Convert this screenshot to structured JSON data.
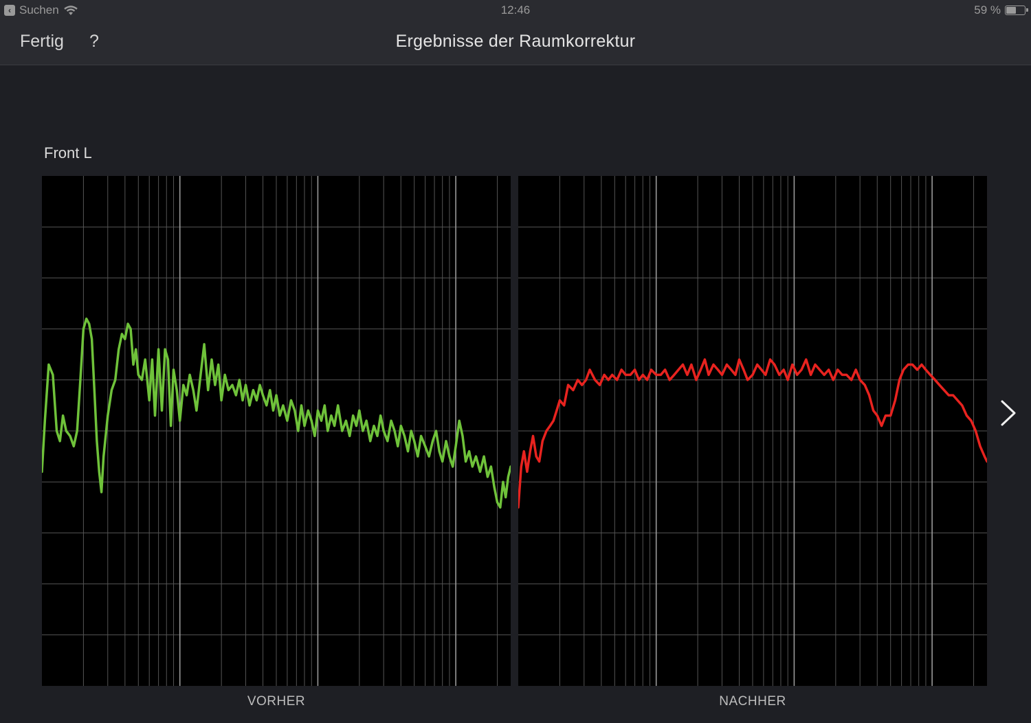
{
  "status_bar": {
    "back_app": "Suchen",
    "time": "12:46",
    "battery": "59 %",
    "battery_level": 0.59
  },
  "nav": {
    "done_label": "Fertig",
    "help_label": "?",
    "title": "Ergebnisse der Raumkorrektur"
  },
  "channel": "Front L",
  "icons": {
    "wifi": "wifi-icon",
    "battery": "battery-icon",
    "back": "back-arrow-icon",
    "next": "chevron-right-icon"
  },
  "colors": {
    "before": "#6fc23a",
    "after": "#e8231f",
    "background": "#1e1f24",
    "plot_background": "#000000",
    "grid": "#555555",
    "grid_major": "#9a9a9a"
  },
  "chart_data": [
    {
      "type": "line",
      "label": "VORHER",
      "x_scale": "log",
      "xlim": [
        10,
        25000
      ],
      "ylim": [
        0,
        10
      ],
      "grid": true,
      "series": [
        {
          "color": "#6fc23a",
          "x": [
            10,
            10.5,
            11.2,
            12,
            12.8,
            13.5,
            14.2,
            15,
            16,
            17,
            18,
            19,
            20,
            21,
            22,
            23,
            24,
            25,
            26,
            27,
            28,
            30,
            32,
            34,
            36,
            38,
            40,
            42,
            44,
            46,
            48,
            50,
            53,
            56,
            60,
            63,
            66,
            70,
            74,
            78,
            82,
            86,
            90,
            95,
            100,
            106,
            112,
            118,
            125,
            132,
            140,
            150,
            160,
            170,
            180,
            190,
            200,
            212,
            225,
            240,
            255,
            270,
            285,
            300,
            320,
            340,
            360,
            380,
            400,
            425,
            450,
            475,
            500,
            530,
            560,
            600,
            640,
            680,
            720,
            760,
            800,
            850,
            900,
            950,
            1000,
            1060,
            1120,
            1180,
            1250,
            1320,
            1400,
            1500,
            1600,
            1700,
            1800,
            1900,
            2000,
            2120,
            2250,
            2400,
            2550,
            2700,
            2850,
            3000,
            3200,
            3400,
            3600,
            3800,
            4000,
            4250,
            4500,
            4750,
            5000,
            5300,
            5600,
            6000,
            6400,
            6800,
            7200,
            7600,
            8000,
            8500,
            9000,
            9500,
            10000,
            10600,
            11200,
            11800,
            12500,
            13200,
            14000,
            15000,
            16000,
            17000,
            18000,
            19000,
            20000,
            21000,
            22000,
            23000,
            24000,
            25000
          ],
          "y": [
            4.2,
            5.2,
            6.3,
            6.1,
            5.0,
            4.8,
            5.3,
            5.0,
            4.9,
            4.7,
            5.0,
            6.0,
            7.0,
            7.2,
            7.1,
            6.8,
            5.8,
            4.8,
            4.2,
            3.8,
            4.5,
            5.3,
            5.8,
            6.0,
            6.6,
            6.9,
            6.8,
            7.1,
            7.0,
            6.3,
            6.6,
            6.1,
            6.0,
            6.4,
            5.6,
            6.4,
            5.3,
            6.6,
            5.4,
            6.6,
            6.4,
            5.1,
            6.2,
            5.8,
            5.2,
            5.9,
            5.7,
            6.1,
            5.8,
            5.4,
            6.0,
            6.7,
            5.8,
            6.4,
            5.9,
            6.3,
            5.6,
            6.1,
            5.8,
            5.9,
            5.7,
            6.0,
            5.6,
            5.9,
            5.5,
            5.8,
            5.6,
            5.9,
            5.7,
            5.5,
            5.8,
            5.4,
            5.7,
            5.3,
            5.5,
            5.2,
            5.6,
            5.4,
            5.0,
            5.5,
            5.1,
            5.4,
            5.2,
            4.9,
            5.4,
            5.2,
            5.5,
            5.0,
            5.3,
            5.1,
            5.5,
            5.0,
            5.2,
            4.9,
            5.3,
            5.1,
            5.4,
            5.0,
            5.2,
            4.8,
            5.1,
            4.9,
            5.3,
            5.0,
            4.8,
            5.2,
            5.0,
            4.7,
            5.1,
            4.9,
            4.6,
            5.0,
            4.8,
            4.5,
            4.9,
            4.7,
            4.5,
            4.8,
            5.0,
            4.6,
            4.4,
            4.8,
            4.5,
            4.3,
            4.7,
            5.2,
            4.9,
            4.4,
            4.6,
            4.3,
            4.5,
            4.2,
            4.5,
            4.1,
            4.3,
            3.9,
            3.6,
            3.5,
            4.0,
            3.7,
            4.1,
            4.3
          ]
        }
      ]
    },
    {
      "type": "line",
      "label": "NACHHER",
      "x_scale": "log",
      "xlim": [
        10,
        25000
      ],
      "ylim": [
        0,
        10
      ],
      "grid": true,
      "series": [
        {
          "color": "#e8231f",
          "x": [
            10,
            10.5,
            11,
            11.6,
            12.2,
            12.8,
            13.5,
            14.2,
            15,
            16,
            17,
            18,
            19,
            20,
            21.5,
            23,
            25,
            27,
            29,
            31,
            33,
            36,
            39,
            42,
            45,
            48,
            52,
            56,
            60,
            65,
            70,
            75,
            80,
            86,
            92,
            100,
            108,
            116,
            125,
            135,
            145,
            156,
            168,
            180,
            195,
            210,
            225,
            240,
            260,
            280,
            300,
            325,
            350,
            375,
            400,
            430,
            460,
            500,
            540,
            580,
            620,
            670,
            720,
            780,
            840,
            900,
            970,
            1050,
            1130,
            1220,
            1320,
            1420,
            1530,
            1650,
            1780,
            1920,
            2070,
            2230,
            2400,
            2600,
            2800,
            3000,
            3250,
            3500,
            3750,
            4000,
            4300,
            4600,
            5000,
            5400,
            5800,
            6200,
            6700,
            7200,
            7800,
            8400,
            9000,
            9700,
            10500,
            11300,
            12200,
            13200,
            14200,
            15300,
            16500,
            17800,
            19200,
            20700,
            22300,
            24000,
            25000
          ],
          "y": [
            3.5,
            4.3,
            4.6,
            4.2,
            4.6,
            4.9,
            4.5,
            4.4,
            4.8,
            5.0,
            5.1,
            5.2,
            5.4,
            5.6,
            5.5,
            5.9,
            5.8,
            6.0,
            5.9,
            6.0,
            6.2,
            6.0,
            5.9,
            6.1,
            6.0,
            6.1,
            6.0,
            6.2,
            6.1,
            6.1,
            6.2,
            6.0,
            6.1,
            6.0,
            6.2,
            6.1,
            6.1,
            6.2,
            6.0,
            6.1,
            6.2,
            6.3,
            6.1,
            6.3,
            6.0,
            6.2,
            6.4,
            6.1,
            6.3,
            6.2,
            6.1,
            6.3,
            6.2,
            6.1,
            6.4,
            6.2,
            6.0,
            6.1,
            6.3,
            6.2,
            6.1,
            6.4,
            6.3,
            6.1,
            6.2,
            6.0,
            6.3,
            6.1,
            6.2,
            6.4,
            6.1,
            6.3,
            6.2,
            6.1,
            6.2,
            6.0,
            6.2,
            6.1,
            6.1,
            6.0,
            6.2,
            6.0,
            5.9,
            5.7,
            5.4,
            5.3,
            5.1,
            5.3,
            5.3,
            5.6,
            6.0,
            6.2,
            6.3,
            6.3,
            6.2,
            6.3,
            6.2,
            6.1,
            6.0,
            5.9,
            5.8,
            5.7,
            5.7,
            5.6,
            5.5,
            5.3,
            5.2,
            5.0,
            4.7,
            4.5,
            4.4
          ]
        }
      ]
    }
  ],
  "charts": {
    "before_label": "VORHER",
    "after_label": "NACHHER"
  }
}
